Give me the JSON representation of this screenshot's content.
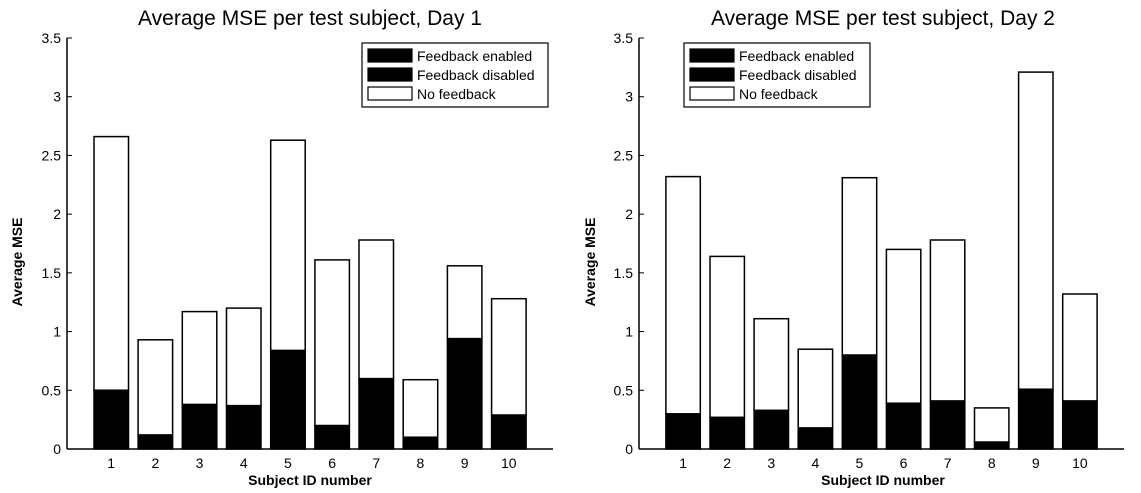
{
  "chart_data": [
    {
      "type": "bar",
      "stacked": true,
      "title": "Average MSE per test subject, Day 1",
      "xlabel": "Subject ID number",
      "ylabel": "Average MSE",
      "ylim": [
        0,
        3.5
      ],
      "yticks": [
        "0",
        "0.5",
        "1",
        "1.5",
        "2",
        "2.5",
        "3",
        "3.5"
      ],
      "categories": [
        "1",
        "2",
        "3",
        "4",
        "5",
        "6",
        "7",
        "8",
        "9",
        "10"
      ],
      "legend_position": "top-right",
      "series": [
        {
          "name": "Feedback enabled",
          "color": "#000000",
          "values": [
            0.5,
            0.12,
            0.38,
            0.37,
            0.84,
            0.2,
            0.6,
            0.1,
            0.94,
            0.29
          ]
        },
        {
          "name": "Feedback disabled",
          "color": "#000000",
          "values": [
            0,
            0,
            0,
            0,
            0,
            0,
            0,
            0,
            0,
            0
          ]
        },
        {
          "name": "No feedback",
          "color": "#ffffff",
          "values": [
            2.16,
            0.81,
            0.79,
            0.83,
            1.79,
            1.41,
            1.18,
            0.49,
            0.62,
            0.99
          ]
        }
      ]
    },
    {
      "type": "bar",
      "stacked": true,
      "title": "Average MSE per test subject, Day 2",
      "xlabel": "Subject ID number",
      "ylabel": "Average MSE",
      "ylim": [
        0,
        3.5
      ],
      "yticks": [
        "0",
        "0.5",
        "1",
        "1.5",
        "2",
        "2.5",
        "3",
        "3.5"
      ],
      "categories": [
        "1",
        "2",
        "3",
        "4",
        "5",
        "6",
        "7",
        "8",
        "9",
        "10"
      ],
      "legend_position": "top-left",
      "series": [
        {
          "name": "Feedback enabled",
          "color": "#000000",
          "values": [
            0.3,
            0.27,
            0.33,
            0.18,
            0.8,
            0.39,
            0.41,
            0.06,
            0.51,
            0.41
          ]
        },
        {
          "name": "Feedback disabled",
          "color": "#000000",
          "values": [
            0,
            0,
            0,
            0,
            0,
            0,
            0,
            0,
            0,
            0
          ]
        },
        {
          "name": "No feedback",
          "color": "#ffffff",
          "values": [
            2.02,
            1.37,
            0.78,
            0.67,
            1.51,
            1.31,
            1.37,
            0.29,
            2.7,
            0.91
          ]
        }
      ]
    }
  ]
}
